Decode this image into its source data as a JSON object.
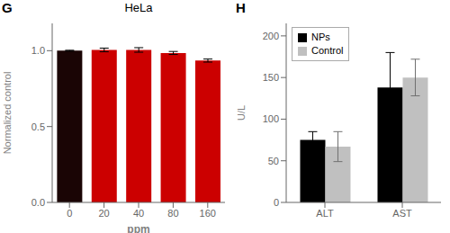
{
  "chart_data": [
    {
      "type": "bar",
      "title": "HeLa",
      "annotations": [
        "G"
      ],
      "categories": [
        "0",
        "20",
        "40",
        "80",
        "160"
      ],
      "values": [
        1.0,
        1.005,
        1.005,
        0.985,
        0.935
      ],
      "errors": [
        0.003,
        0.012,
        0.015,
        0.01,
        0.01
      ],
      "colors": [
        "#1a0505",
        "#cc0000",
        "#cc0000",
        "#cc0000",
        "#cc0000"
      ],
      "xlabel": "ppm",
      "ylabel": "Normalized control",
      "ylim": [
        0.0,
        1.18
      ],
      "yticks": [
        {
          "value": 0.0,
          "label": "0.0"
        },
        {
          "value": 0.5,
          "label": "0.5"
        },
        {
          "value": 1.0,
          "label": "1.0"
        }
      ]
    },
    {
      "type": "bar",
      "annotations": [
        "H"
      ],
      "categories": [
        "ALT",
        "AST"
      ],
      "series": [
        {
          "name": "NPs",
          "color": "#000000",
          "values": [
            75,
            138
          ],
          "errors": [
            10,
            42
          ]
        },
        {
          "name": "Control",
          "color": "#c0c0c0",
          "values": [
            67,
            150
          ],
          "errors": [
            18,
            22
          ]
        }
      ],
      "ylabel": "U/L",
      "ylim": [
        0,
        215
      ],
      "yticks": [
        0,
        50,
        100,
        150,
        200
      ],
      "legend": "upper left"
    }
  ]
}
